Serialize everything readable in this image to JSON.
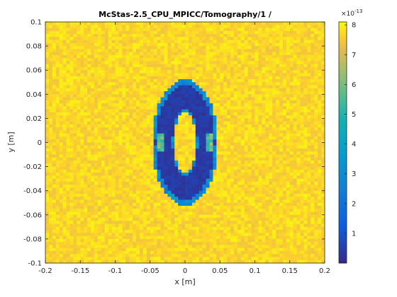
{
  "chart_data": {
    "type": "heatmap",
    "title": "McStas-2.5_CPU_MPICC/Tomography/1 /",
    "xlabel": "x [m]",
    "ylabel": "y [m]",
    "xlim": [
      -0.2,
      0.2
    ],
    "ylim": [
      -0.1,
      0.1
    ],
    "x_ticks": [
      "-0.2",
      "-0.15",
      "-0.1",
      "-0.05",
      "0",
      "0.05",
      "0.1",
      "0.15",
      "0.2"
    ],
    "y_ticks": [
      "0.1",
      "0.08",
      "0.06",
      "0.04",
      "0.02",
      "0",
      "-0.02",
      "-0.04",
      "-0.06",
      "-0.08",
      "-0.1"
    ],
    "colorbar": {
      "exponent_label": "×10",
      "exponent": "-13",
      "ticks": [
        "8",
        "7",
        "6",
        "5",
        "4",
        "3",
        "2",
        "1"
      ],
      "range": [
        0,
        8.1e-13
      ]
    },
    "colormap": "parula",
    "grid": {
      "nx": 80,
      "ny": 80
    },
    "background_level": 7.7e-13,
    "features": [
      {
        "shape": "elliptical-annulus",
        "center": [
          0,
          0
        ],
        "outer_radii": [
          0.047,
          0.052
        ],
        "inner_radii": [
          0.016,
          0.025
        ],
        "level": 4e-14
      },
      {
        "shape": "spots",
        "x": [
          -0.035,
          0.035
        ],
        "y": 0,
        "level": 5.5e-13
      }
    ]
  }
}
